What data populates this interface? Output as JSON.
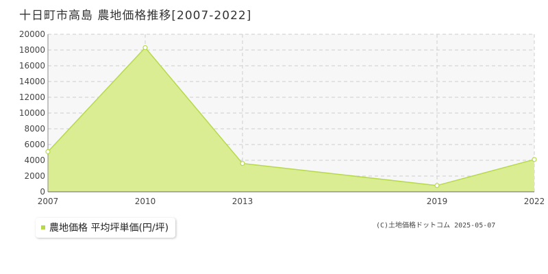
{
  "chart_data": {
    "type": "area",
    "title": "十日町市高島 農地価格推移[2007-2022]",
    "x": [
      "2007",
      "2010",
      "2013",
      "2019",
      "2022"
    ],
    "series": [
      {
        "name": "農地価格 平均坪単価(円/坪)",
        "values": [
          5100,
          18300,
          3600,
          800,
          4100
        ]
      }
    ],
    "ylim": [
      0,
      20000
    ],
    "yticks": [
      0,
      2000,
      4000,
      6000,
      8000,
      10000,
      12000,
      14000,
      16000,
      18000,
      20000
    ],
    "grid": true,
    "legend_position": "bottom-left"
  },
  "colors": {
    "fill": "#dbed93",
    "line": "#b5d94a",
    "grid": "#cccccc",
    "plot_bg": "#f7f7f7"
  },
  "legend": {
    "label": "農地価格 平均坪単価(円/坪)"
  },
  "credit": "(C)土地価格ドットコム 2025-05-07"
}
